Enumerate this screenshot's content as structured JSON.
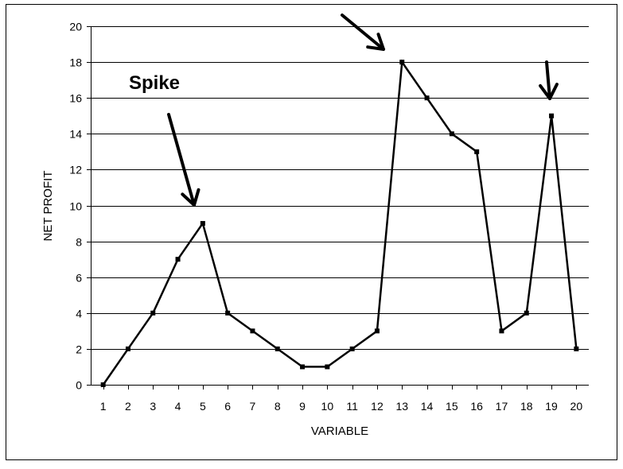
{
  "chart_data": {
    "type": "line",
    "xlabel": "VARIABLE",
    "ylabel": "NET PROFIT",
    "categories": [
      "1",
      "2",
      "3",
      "4",
      "5",
      "6",
      "7",
      "8",
      "9",
      "10",
      "11",
      "12",
      "13",
      "14",
      "15",
      "16",
      "17",
      "18",
      "19",
      "20"
    ],
    "series": [
      {
        "values": [
          0,
          2,
          4,
          7,
          9,
          4,
          3,
          2,
          1,
          1,
          2,
          3,
          18,
          16,
          14,
          13,
          3,
          4,
          15,
          2
        ]
      }
    ],
    "ylim": [
      0,
      20
    ],
    "yticks": [
      0,
      2,
      4,
      6,
      8,
      10,
      12,
      14,
      16,
      18,
      20
    ],
    "grid": "horizontal",
    "legend": "none",
    "annotation_text": "Spike",
    "spike_points": [
      "5",
      "13",
      "19"
    ],
    "colors": {
      "line": "#000000",
      "grid": "#000000",
      "border": "#000000",
      "background": "#ffffff"
    }
  }
}
